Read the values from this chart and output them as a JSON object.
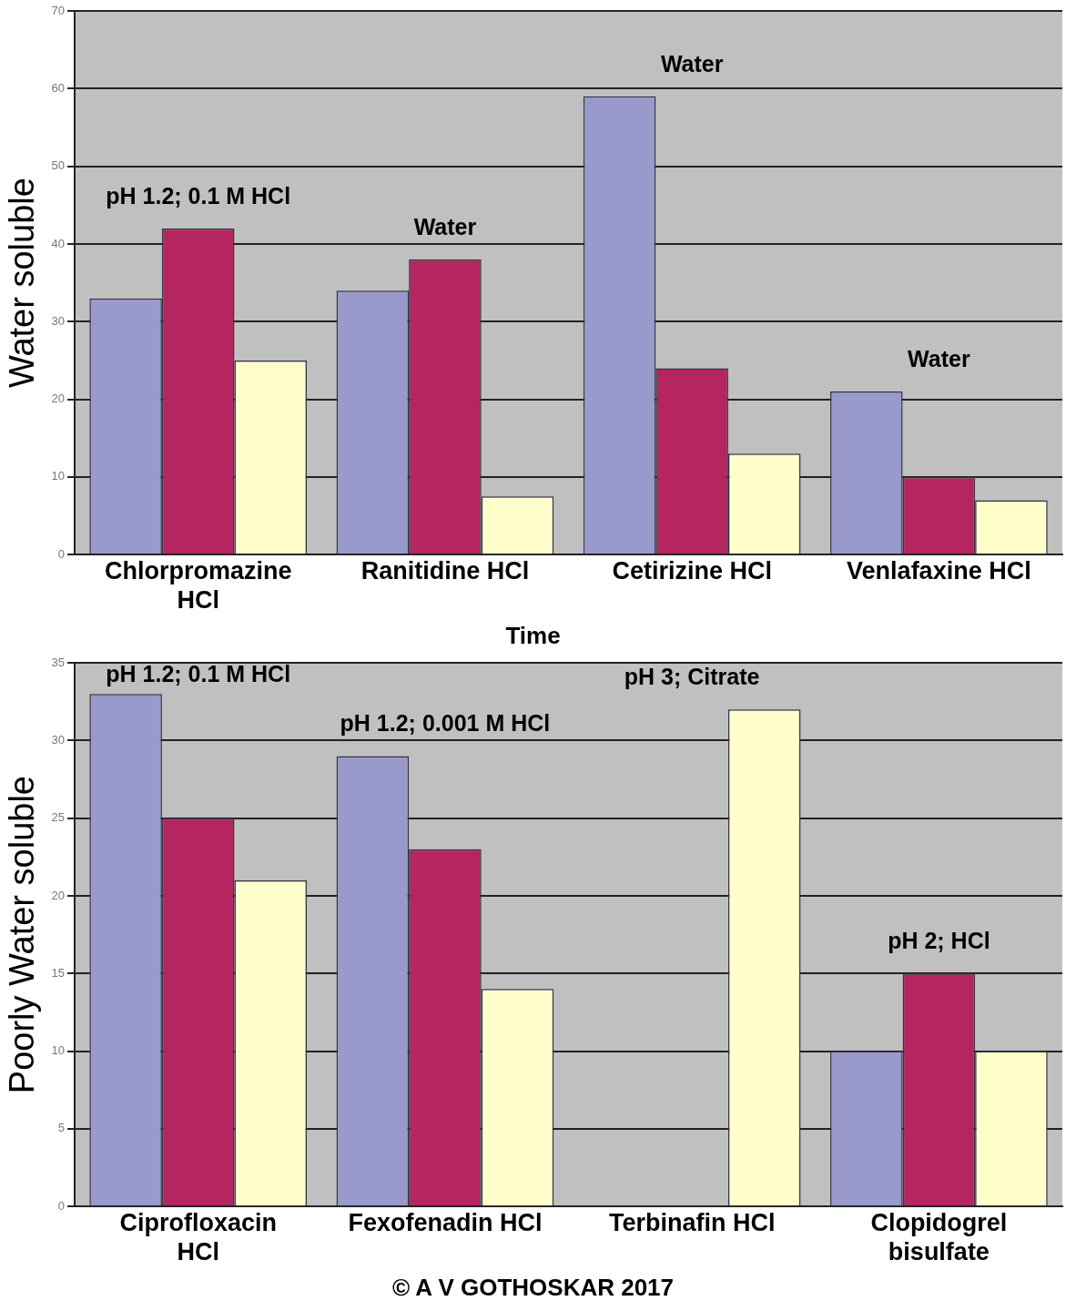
{
  "chart_data": [
    {
      "type": "bar",
      "ylabel": "Water soluble",
      "categories": [
        "Chlorpromazine HCl",
        "Ranitidine HCl",
        "Cetirizine HCl",
        "Venlafaxine HCl"
      ],
      "series": [
        {
          "color": "#9999cc",
          "values": [
            33,
            34,
            59,
            21
          ]
        },
        {
          "color": "#b5255f",
          "values": [
            42,
            38,
            24,
            10
          ]
        },
        {
          "color": "#ffffcc",
          "values": [
            25,
            7.5,
            13,
            7
          ]
        }
      ],
      "ylim": [
        0,
        70
      ],
      "yticks": [
        0,
        10,
        20,
        30,
        40,
        50,
        60,
        70
      ],
      "grid": "y",
      "legend": false,
      "annotations": [
        "pH 1.2; 0.1 M HCl",
        "Water",
        "Water",
        "Water",
        "Time"
      ]
    },
    {
      "type": "bar",
      "ylabel": "Poorly Water soluble",
      "categories": [
        "Ciprofloxacin HCl",
        "Fexofenadin HCl",
        "Terbinafin HCl",
        "Clopidogrel bisulfate"
      ],
      "series": [
        {
          "color": "#9999cc",
          "values": [
            33,
            29,
            null,
            10
          ]
        },
        {
          "color": "#b5255f",
          "values": [
            25,
            23,
            null,
            15
          ]
        },
        {
          "color": "#ffffcc",
          "values": [
            21,
            14,
            32,
            10
          ]
        }
      ],
      "ylim": [
        0,
        35
      ],
      "yticks": [
        0,
        5,
        10,
        15,
        20,
        25,
        30,
        35
      ],
      "grid": "y",
      "legend": false,
      "annotations": [
        "pH 1.2; 0.1 M HCl",
        "pH 1.2; 0.001 M HCl",
        "pH 3; Citrate",
        "pH 2; HCl",
        "© A V GOTHOSKAR 2017"
      ]
    }
  ]
}
